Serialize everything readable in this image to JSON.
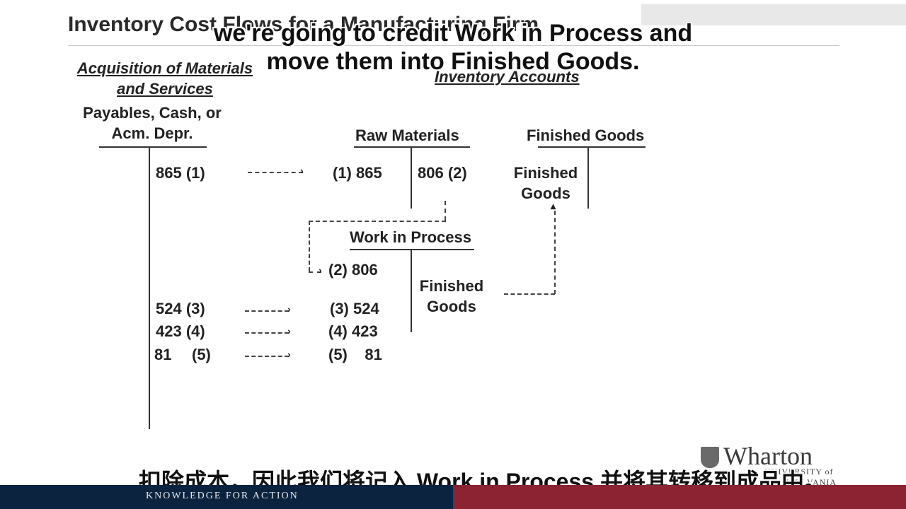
{
  "slide": {
    "title": "Inventory Cost Flows for a Manufacturing Firm",
    "acq_heading_line1": "Acquisition of Materials",
    "acq_heading_line2": "and Services",
    "inventory_heading": "Inventory Accounts",
    "payables_line1": "Payables, Cash, or",
    "payables_line2": "Acm. Depr.",
    "raw_materials": "Raw Materials",
    "finished_goods_header": "Finished Goods",
    "work_in_process": "Work in Process",
    "fg_in_account_line1": "Finished",
    "fg_in_account_line2": "Goods",
    "wip_credit_line1": "Finished",
    "wip_credit_line2": "Goods",
    "left_entries": [
      "865  (1)",
      "524  (3)",
      "423  (4)",
      "81",
      "(5)"
    ],
    "rm_debit": "(1)  865",
    "rm_credit": "806 (2)",
    "wip_entries": [
      "(2)  806",
      "(3)  524",
      "(4)  423",
      "(5)    81"
    ]
  },
  "captions": {
    "top_line1": "we're going to credit Work in Process and",
    "top_line2": "move them into Finished Goods.",
    "bottom": "扣除成本，因此我们将记入 Work in Process 并将其转移到成品中。"
  },
  "footer": {
    "tagline": "KNOWLEDGE FOR ACTION",
    "logo": "Wharton",
    "logo_sub": "UNIVERSITY of PENNSYLVANIA"
  },
  "colors": {
    "footer_navy": "#0c2340",
    "footer_red": "#8b2332"
  }
}
